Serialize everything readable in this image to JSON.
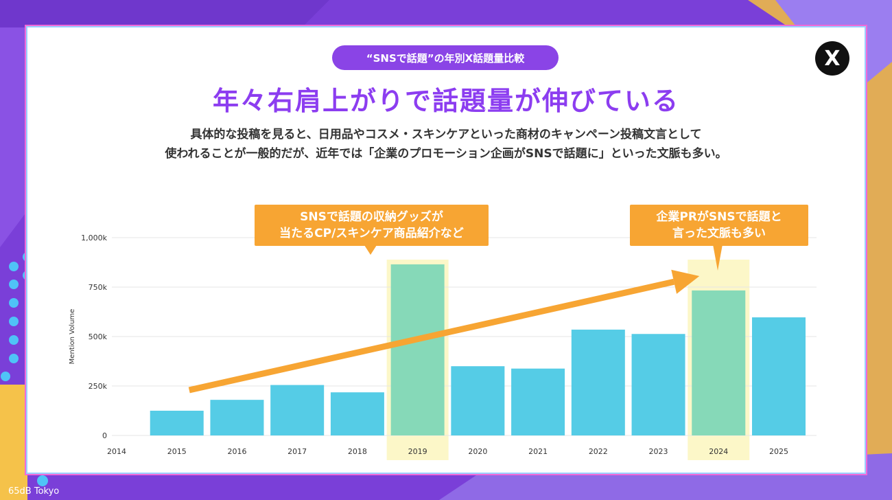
{
  "badge": "“SNSで話題”の年別X話題量比較",
  "headline": "年々右肩上がりで話題量が伸びている",
  "subtext": {
    "line1": "具体的な投稿を見ると、日用品やコスメ・スキンケアといった商材のキャンペーン投稿文言として",
    "line2": "使われることが一般的だが、近年では「企業のプロモーション企画がSNSで話題に」といった文脈も多い。"
  },
  "logo_text": "X",
  "callouts": [
    {
      "line1": "SNSで話題の収納グッズが",
      "line2": "当たるCP/スキンケア商品紹介など"
    },
    {
      "line1": "企業PRがSNSで話題と",
      "line2": "言った文脈も多い"
    }
  ],
  "brand": "65dB Tokyo",
  "colors": {
    "bar": "#55cce6",
    "highlight_bar": "#86d9b8",
    "highlight_band": "#fcf7c8",
    "trend_arrow": "#f7a533",
    "accent": "#8c3df0"
  },
  "chart_data": {
    "type": "bar",
    "ylabel": "Mention Volume",
    "xlabel": "",
    "x_ticks": [
      "2014",
      "2015",
      "2016",
      "2017",
      "2018",
      "2019",
      "2020",
      "2021",
      "2022",
      "2023",
      "2024",
      "2025"
    ],
    "categories": [
      "2015",
      "2016",
      "2017",
      "2018",
      "2019",
      "2020",
      "2021",
      "2022",
      "2023",
      "2024",
      "2025"
    ],
    "values": [
      125000,
      180000,
      255000,
      218000,
      865000,
      350000,
      338000,
      535000,
      513000,
      733000,
      597000
    ],
    "highlighted": [
      "2019",
      "2024"
    ],
    "y_ticks": [
      {
        "value": 0,
        "label": "0"
      },
      {
        "value": 250000,
        "label": "250k"
      },
      {
        "value": 500000,
        "label": "500k"
      },
      {
        "value": 750000,
        "label": "750k"
      },
      {
        "value": 1000000,
        "label": "1,000k"
      }
    ],
    "ylim": [
      0,
      1000000
    ],
    "grid": true,
    "trend_arrow": {
      "from": "2015",
      "to": "2024"
    }
  }
}
